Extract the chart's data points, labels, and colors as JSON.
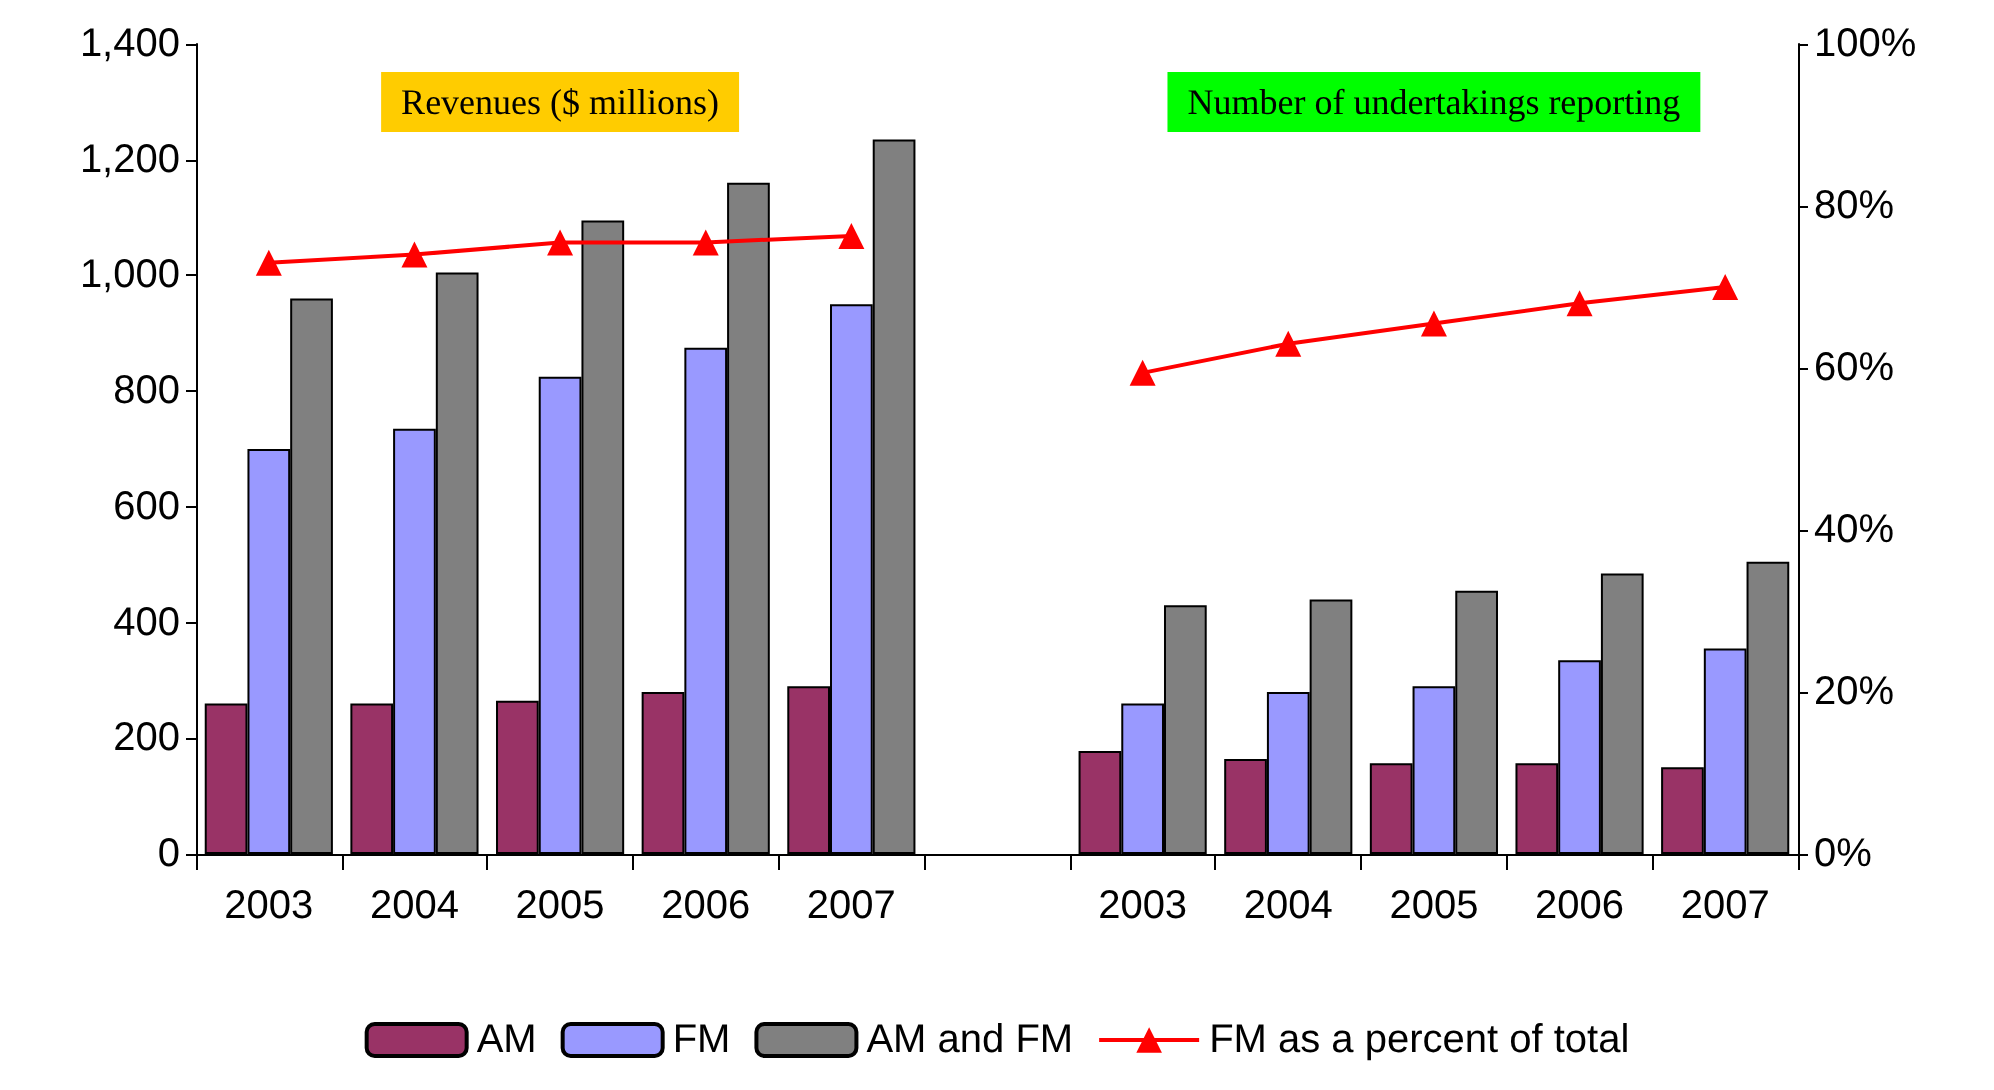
{
  "chart_data": {
    "type": "bar",
    "categories": [
      "2003",
      "2004",
      "2005",
      "2006",
      "2007",
      null,
      "2003",
      "2004",
      "2005",
      "2006",
      "2007"
    ],
    "series": [
      {
        "name": "AM",
        "color": "#993366",
        "values": [
          260,
          260,
          265,
          280,
          290,
          null,
          178,
          164,
          157,
          157,
          150
        ]
      },
      {
        "name": "FM",
        "color": "#9999ff",
        "values": [
          700,
          735,
          825,
          875,
          950,
          null,
          260,
          280,
          290,
          335,
          355
        ]
      },
      {
        "name": "AM and FM",
        "color": "#808080",
        "values": [
          960,
          1005,
          1095,
          1160,
          1235,
          null,
          430,
          440,
          455,
          485,
          505
        ]
      },
      {
        "name": "FM as a percent of total",
        "type": "line",
        "axis": "y2",
        "color": "#ff0000",
        "marker": "triangle",
        "values": [
          73,
          74,
          75.5,
          75.5,
          76.3,
          null,
          59.4,
          63,
          65.5,
          68,
          70
        ]
      }
    ],
    "annotations": [
      "Revenues ($ millions)",
      "Number of undertakings reporting"
    ],
    "ylim": [
      0,
      1400
    ],
    "yticks": [
      0,
      200,
      400,
      600,
      800,
      {
        "value": 1000,
        "label": "1,000"
      },
      {
        "value": 1200,
        "label": "1,200"
      },
      {
        "value": 1400,
        "label": "1,400"
      }
    ],
    "y2lim": [
      0,
      100
    ],
    "y2ticks": [
      {
        "value": 0,
        "label": "0%"
      },
      {
        "value": 20,
        "label": "20%"
      },
      {
        "value": 40,
        "label": "40%"
      },
      {
        "value": 60,
        "label": "60%"
      },
      {
        "value": 80,
        "label": "80%"
      },
      {
        "value": 100,
        "label": "100%"
      }
    ],
    "grid": false,
    "legend": "bottom"
  }
}
